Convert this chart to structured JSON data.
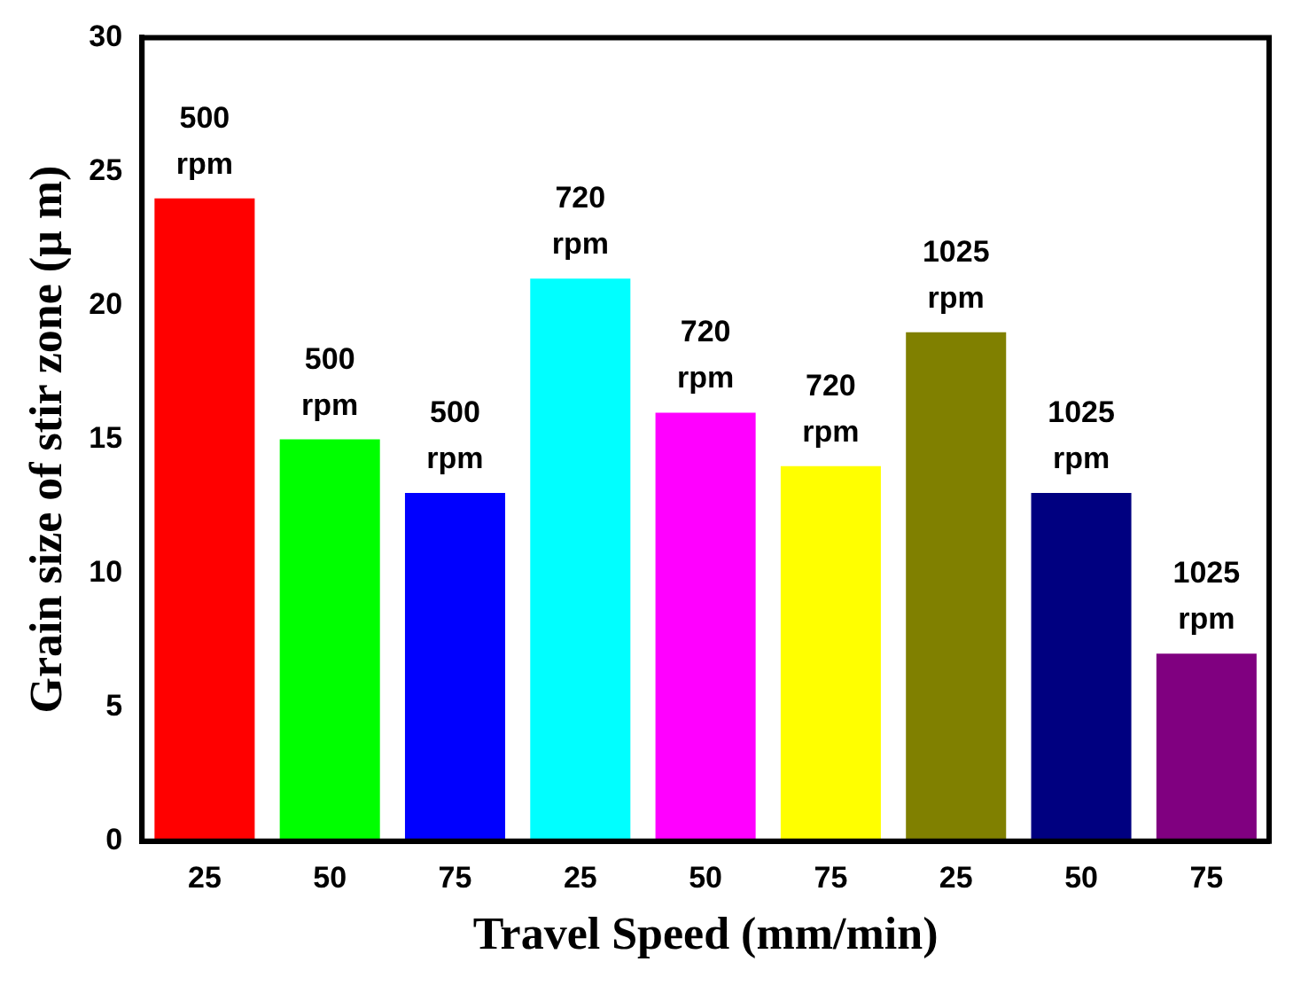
{
  "chart_data": {
    "type": "bar",
    "xlabel": "Travel Speed (mm/min)",
    "ylabel": "Grain size of stir zone (μ m)",
    "categories": [
      "25",
      "50",
      "75",
      "25",
      "50",
      "75",
      "25",
      "50",
      "75"
    ],
    "values": [
      24,
      15,
      13,
      21,
      16,
      14,
      19,
      13,
      7
    ],
    "colors": [
      "#ff0000",
      "#00ff00",
      "#0000ff",
      "#00ffff",
      "#ff00ff",
      "#ffff00",
      "#808000",
      "#000080",
      "#800080"
    ],
    "ylim": [
      0,
      30
    ],
    "yticks": [
      0,
      5,
      10,
      15,
      20,
      25,
      30
    ],
    "grid": false,
    "legend": false,
    "annotations": [
      "500 rpm",
      "500 rpm",
      "500 rpm",
      "720 rpm",
      "720 rpm",
      "720 rpm",
      "1025 rpm",
      "1025 rpm",
      "1025 rpm"
    ]
  }
}
